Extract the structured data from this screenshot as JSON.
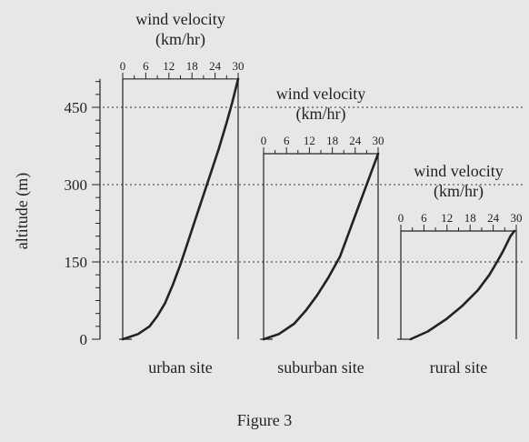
{
  "figure_caption": "Figure 3",
  "chart_data": {
    "type": "line",
    "ylabel": "altitude (m)",
    "y_ticks": [
      0,
      150,
      300,
      450
    ],
    "y_minor_step": 25,
    "gridlines_at": [
      150,
      300,
      450
    ],
    "panels": [
      {
        "xlabel": "urban site",
        "axis_title_line1": "wind velocity",
        "axis_title_line2": "(km/hr)",
        "x_ticks": [
          0,
          6,
          12,
          18,
          24,
          30
        ],
        "xlim": [
          0,
          30
        ],
        "box_top_altitude": 505,
        "x": [
          0,
          4,
          7,
          9,
          11,
          13,
          15,
          17,
          19,
          21,
          23,
          25,
          27,
          28.5,
          30
        ],
        "y": [
          0,
          10,
          25,
          45,
          70,
          105,
          145,
          190,
          235,
          280,
          325,
          370,
          420,
          460,
          505
        ]
      },
      {
        "xlabel": "suburban site",
        "axis_title_line1": "wind velocity",
        "axis_title_line2": "(km/hr)",
        "x_ticks": [
          0,
          6,
          12,
          18,
          24,
          30
        ],
        "xlim": [
          0,
          30
        ],
        "box_top_altitude": 360,
        "x": [
          0,
          4,
          8,
          11,
          14,
          17,
          20,
          22,
          24,
          26,
          28,
          30
        ],
        "y": [
          0,
          10,
          30,
          55,
          85,
          120,
          160,
          200,
          240,
          280,
          320,
          360
        ]
      },
      {
        "xlabel": "rural site",
        "axis_title_line1": "wind velocity",
        "axis_title_line2": "(km/hr)",
        "x_ticks": [
          0,
          6,
          12,
          18,
          24,
          30
        ],
        "xlim": [
          0,
          30
        ],
        "box_top_altitude": 210,
        "x": [
          2.5,
          7,
          12,
          16,
          20,
          23,
          25,
          26.5,
          27.5,
          28.5,
          29.5
        ],
        "y": [
          0,
          15,
          40,
          65,
          95,
          125,
          150,
          170,
          185,
          200,
          210
        ]
      }
    ]
  }
}
